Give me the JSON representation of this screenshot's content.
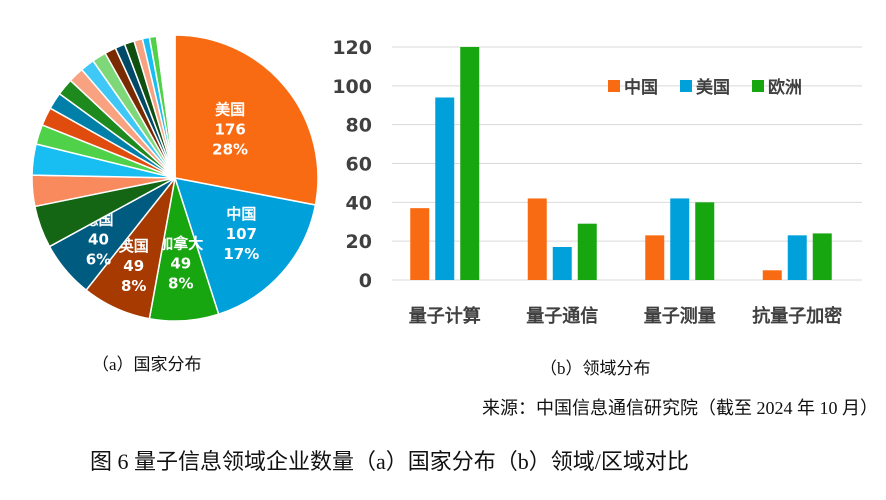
{
  "chart_data": [
    {
      "type": "pie",
      "caption": "（a）国家分布",
      "slices": [
        {
          "label": "美国",
          "value": 176,
          "percent": "28%",
          "color": "#F96B13"
        },
        {
          "label": "中国",
          "value": 107,
          "percent": "17%",
          "color": "#00A0DA"
        },
        {
          "label": "加拿大",
          "value": 49,
          "percent": "8%",
          "color": "#17A610"
        },
        {
          "label": "英国",
          "value": 49,
          "percent": "8%",
          "color": "#A63A00"
        },
        {
          "label": "德国",
          "value": 40,
          "percent": "6%",
          "color": "#005B80"
        },
        {
          "value": 30,
          "color": "#146614"
        },
        {
          "value": 22,
          "color": "#F98A5E"
        },
        {
          "value": 22,
          "color": "#18BEF2"
        },
        {
          "value": 14,
          "color": "#4FD14A"
        },
        {
          "value": 13,
          "color": "#E04C0E"
        },
        {
          "value": 12,
          "color": "#0080A8"
        },
        {
          "value": 12,
          "color": "#1E8A1E"
        },
        {
          "value": 11,
          "color": "#F9A282"
        },
        {
          "value": 10,
          "color": "#3FC8F5"
        },
        {
          "value": 10,
          "color": "#7ED87A"
        },
        {
          "value": 8,
          "color": "#7A2A00"
        },
        {
          "value": 7,
          "color": "#004A68"
        },
        {
          "value": 7,
          "color": "#0F4F0F"
        },
        {
          "value": 6,
          "color": "#F9A282"
        },
        {
          "value": 5,
          "color": "#18BEF2"
        },
        {
          "value": 5,
          "color": "#4FD14A"
        },
        {
          "value": 1,
          "color": "#F9C0A8"
        },
        {
          "value": 1,
          "color": "#A0E0F8"
        },
        {
          "value": 1,
          "color": "#A8E8A4"
        },
        {
          "value": 1,
          "color": "#F9C0A8"
        },
        {
          "value": 1,
          "color": "#A0E0F8"
        },
        {
          "value": 1,
          "color": "#A8E8A4"
        },
        {
          "value": 1,
          "color": "#F9C0A8"
        },
        {
          "value": 1,
          "color": "#A0E0F8"
        },
        {
          "value": 1,
          "color": "#A8E8A4"
        },
        {
          "value": 1,
          "color": "#F9C0A8"
        },
        {
          "value": 1,
          "color": "#A0E0F8"
        },
        {
          "value": 1,
          "color": "#A8E8A4"
        },
        {
          "value": 1,
          "color": "#F9C0A8"
        }
      ]
    },
    {
      "type": "bar",
      "caption": "（b）领域分布",
      "categories": [
        "量子计算",
        "量子通信",
        "量子测量",
        "抗量子加密"
      ],
      "series": [
        {
          "name": "中国",
          "values": [
            37,
            42,
            23,
            5
          ],
          "color": "#F96B13"
        },
        {
          "name": "美国",
          "values": [
            94,
            17,
            42,
            23
          ],
          "color": "#00A0DA"
        },
        {
          "name": "欧洲",
          "values": [
            120,
            29,
            40,
            24
          ],
          "color": "#17A610"
        }
      ],
      "ylim": [
        0,
        120
      ],
      "yticks": [
        0,
        20,
        40,
        60,
        80,
        100,
        120
      ],
      "grid": true,
      "legend": "top-right"
    }
  ],
  "source": "来源：中国信息通信研究院（截至 2024 年 10 月）",
  "figure_caption": "图 6 量子信息领域企业数量（a）国家分布（b）领域/区域对比"
}
